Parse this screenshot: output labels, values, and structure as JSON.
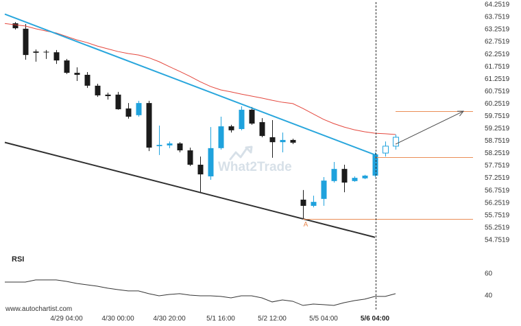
{
  "chart_data": {
    "type": "candlestick",
    "grid": false,
    "price_axis": {
      "ylim": [
        54.39,
        64.42
      ],
      "ticks": [
        "64.2519",
        "63.7519",
        "63.2519",
        "62.7519",
        "62.2519",
        "61.7519",
        "61.2519",
        "60.7519",
        "60.2519",
        "59.7519",
        "59.2519",
        "58.7519",
        "58.2519",
        "57.7519",
        "57.2519",
        "56.7519",
        "56.2519",
        "55.7519",
        "55.2519",
        "54.7519"
      ]
    },
    "time_axis": {
      "ticks": [
        {
          "index": 5,
          "label": "4/29 04:00"
        },
        {
          "index": 10,
          "label": "4/30 00:00"
        },
        {
          "index": 15,
          "label": "4/30 20:00"
        },
        {
          "index": 20,
          "label": "5/1 16:00"
        },
        {
          "index": 25,
          "label": "5/2 12:00"
        },
        {
          "index": 30,
          "label": "5/5 04:00"
        },
        {
          "index": 35,
          "label": "5/6 04:00",
          "highlight": true
        }
      ]
    },
    "candles": [
      {
        "o": 63.48,
        "h": 63.53,
        "l": 63.23,
        "c": 63.28
      },
      {
        "o": 63.26,
        "h": 63.45,
        "l": 62.01,
        "c": 62.2
      },
      {
        "o": 62.34,
        "h": 62.42,
        "l": 61.93,
        "c": 62.29
      },
      {
        "o": 62.33,
        "h": 62.4,
        "l": 62.04,
        "c": 62.31
      },
      {
        "o": 62.31,
        "h": 62.4,
        "l": 61.84,
        "c": 61.98
      },
      {
        "o": 61.98,
        "h": 62.04,
        "l": 61.43,
        "c": 61.48
      },
      {
        "o": 61.48,
        "h": 61.7,
        "l": 61.15,
        "c": 61.4
      },
      {
        "o": 61.4,
        "h": 61.51,
        "l": 60.87,
        "c": 60.96
      },
      {
        "o": 60.96,
        "h": 61.04,
        "l": 60.51,
        "c": 60.57
      },
      {
        "o": 60.6,
        "h": 60.68,
        "l": 60.4,
        "c": 60.54
      },
      {
        "o": 60.6,
        "h": 60.71,
        "l": 59.99,
        "c": 60.01
      },
      {
        "o": 60.04,
        "h": 60.26,
        "l": 59.63,
        "c": 59.71
      },
      {
        "o": 59.77,
        "h": 60.35,
        "l": 59.71,
        "c": 60.26
      },
      {
        "o": 60.26,
        "h": 60.35,
        "l": 58.32,
        "c": 58.46
      },
      {
        "o": 58.52,
        "h": 59.35,
        "l": 58.16,
        "c": 58.57
      },
      {
        "o": 58.55,
        "h": 58.71,
        "l": 58.44,
        "c": 58.63
      },
      {
        "o": 58.63,
        "h": 58.68,
        "l": 58.27,
        "c": 58.35
      },
      {
        "o": 58.35,
        "h": 58.46,
        "l": 57.72,
        "c": 57.77
      },
      {
        "o": 57.77,
        "h": 58.1,
        "l": 56.66,
        "c": 57.38
      },
      {
        "o": 57.3,
        "h": 59.29,
        "l": 57.16,
        "c": 58.44
      },
      {
        "o": 58.44,
        "h": 59.71,
        "l": 58.38,
        "c": 59.32
      },
      {
        "o": 59.32,
        "h": 59.38,
        "l": 59.07,
        "c": 59.16
      },
      {
        "o": 59.21,
        "h": 60.13,
        "l": 59.16,
        "c": 59.99
      },
      {
        "o": 59.99,
        "h": 60.1,
        "l": 59.38,
        "c": 59.43
      },
      {
        "o": 59.49,
        "h": 59.65,
        "l": 58.88,
        "c": 58.93
      },
      {
        "o": 58.88,
        "h": 59.57,
        "l": 58.05,
        "c": 58.68
      },
      {
        "o": 58.68,
        "h": 59.07,
        "l": 58.27,
        "c": 58.77
      },
      {
        "o": 58.77,
        "h": 58.82,
        "l": 58.6,
        "c": 58.66
      },
      {
        "o": 56.36,
        "h": 56.75,
        "l": 55.61,
        "c": 56.11
      },
      {
        "o": 56.11,
        "h": 56.52,
        "l": 56.05,
        "c": 56.27
      },
      {
        "o": 56.39,
        "h": 57.27,
        "l": 56.11,
        "c": 57.13
      },
      {
        "o": 57.11,
        "h": 57.88,
        "l": 57.05,
        "c": 57.6
      },
      {
        "o": 57.6,
        "h": 57.77,
        "l": 56.66,
        "c": 57.05
      },
      {
        "o": 57.11,
        "h": 57.3,
        "l": 57.08,
        "c": 57.24
      },
      {
        "o": 57.22,
        "h": 57.36,
        "l": 57.19,
        "c": 57.33
      },
      {
        "o": 57.33,
        "h": 58.27,
        "l": 57.27,
        "c": 58.19
      },
      {
        "o": 58.24,
        "h": 58.71,
        "l": 58.1,
        "c": 58.52,
        "hollow": true
      },
      {
        "o": 58.52,
        "h": 58.99,
        "l": 58.38,
        "c": 58.88,
        "hollow": true
      }
    ],
    "moving_average": [
      [
        -1,
        63.47
      ],
      [
        0,
        63.42
      ],
      [
        1,
        63.37
      ],
      [
        2,
        63.26
      ],
      [
        3,
        63.17
      ],
      [
        4,
        63.09
      ],
      [
        5,
        62.95
      ],
      [
        6,
        62.81
      ],
      [
        7,
        62.7
      ],
      [
        8,
        62.56
      ],
      [
        9,
        62.45
      ],
      [
        10,
        62.34
      ],
      [
        11,
        62.26
      ],
      [
        12,
        62.2
      ],
      [
        13,
        62.09
      ],
      [
        14,
        61.93
      ],
      [
        15,
        61.73
      ],
      [
        16,
        61.54
      ],
      [
        17,
        61.34
      ],
      [
        18,
        61.12
      ],
      [
        19,
        60.93
      ],
      [
        20,
        60.79
      ],
      [
        21,
        60.71
      ],
      [
        22,
        60.62
      ],
      [
        23,
        60.54
      ],
      [
        24,
        60.46
      ],
      [
        25,
        60.37
      ],
      [
        26,
        60.29
      ],
      [
        27,
        60.24
      ],
      [
        28,
        60.04
      ],
      [
        29,
        59.82
      ],
      [
        30,
        59.6
      ],
      [
        31,
        59.43
      ],
      [
        32,
        59.29
      ],
      [
        33,
        59.18
      ],
      [
        34,
        59.1
      ],
      [
        35,
        59.04
      ],
      [
        36,
        59.02
      ],
      [
        37,
        58.99
      ]
    ],
    "trend_lines": {
      "resistance": {
        "from": [
          -1,
          63.85
        ],
        "to": [
          35,
          58.17
        ]
      },
      "support": {
        "from": [
          -1,
          58.67
        ],
        "to": [
          35,
          54.84
        ]
      }
    },
    "levels": [
      {
        "price": 59.93,
        "from_index": 37
      },
      {
        "price": 58.07,
        "from_index": 35
      },
      {
        "price": 55.58,
        "from_index": 28
      }
    ],
    "projection_arrow": {
      "from": [
        37,
        58.6
      ],
      "to": [
        43.6,
        59.93
      ]
    },
    "pattern_points": [
      {
        "text": "A",
        "index": 28,
        "price": 55.61
      }
    ],
    "rsi": {
      "name": "RSI",
      "ylim": [
        26.25,
        80.625
      ],
      "ticks": [
        "60",
        "40"
      ],
      "values": [
        [
          -1,
          51.9
        ],
        [
          0,
          51.9
        ],
        [
          1,
          51.9
        ],
        [
          2,
          53.8
        ],
        [
          3,
          53.8
        ],
        [
          4,
          53.8
        ],
        [
          5,
          52.5
        ],
        [
          6,
          50.6
        ],
        [
          7,
          49.4
        ],
        [
          8,
          48.1
        ],
        [
          9,
          46.3
        ],
        [
          10,
          45.0
        ],
        [
          11,
          43.8
        ],
        [
          12,
          43.8
        ],
        [
          13,
          41.3
        ],
        [
          14,
          39.4
        ],
        [
          15,
          40.6
        ],
        [
          16,
          41.3
        ],
        [
          17,
          40.0
        ],
        [
          18,
          39.4
        ],
        [
          19,
          39.4
        ],
        [
          20,
          38.8
        ],
        [
          21,
          37.5
        ],
        [
          22,
          39.4
        ],
        [
          23,
          39.4
        ],
        [
          24,
          37.5
        ],
        [
          25,
          33.8
        ],
        [
          26,
          35.6
        ],
        [
          27,
          34.4
        ],
        [
          28,
          30.6
        ],
        [
          29,
          31.9
        ],
        [
          30,
          31.3
        ],
        [
          31,
          30.6
        ],
        [
          32,
          33.1
        ],
        [
          33,
          35.0
        ],
        [
          34,
          36.3
        ],
        [
          35,
          38.8
        ],
        [
          36,
          38.8
        ],
        [
          37,
          41.3
        ]
      ]
    }
  },
  "watermark": "What2Trade",
  "footer": {
    "source_text": "www.autochartist.com"
  },
  "colors": {
    "bullish": "#1fa2dd",
    "bearish": "#1b1b1b",
    "moving_average": "#e4463c",
    "resistance_line": "#29a6dc",
    "support_line": "#2f2f2f",
    "level_line": "#ea8c55",
    "arrow": "#4a4a4a",
    "marker_line": "#2a2a2a",
    "rsi_line": "#333333",
    "pattern_label": "#ea8c55",
    "watermark": "#b7c8d6"
  }
}
